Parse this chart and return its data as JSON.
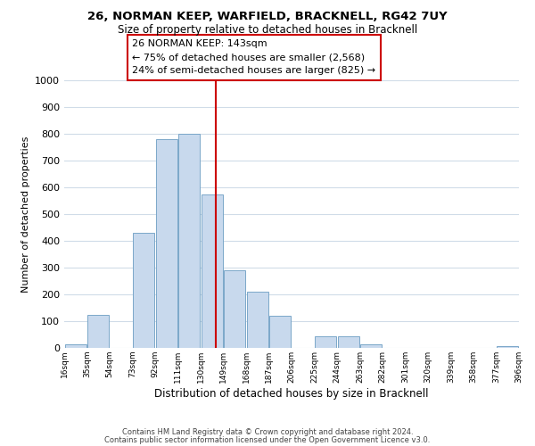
{
  "title1": "26, NORMAN KEEP, WARFIELD, BRACKNELL, RG42 7UY",
  "title2": "Size of property relative to detached houses in Bracknell",
  "xlabel": "Distribution of detached houses by size in Bracknell",
  "ylabel": "Number of detached properties",
  "bar_left_edges": [
    16,
    35,
    54,
    73,
    92,
    111,
    130,
    149,
    168,
    187,
    206,
    225,
    244,
    263,
    282,
    301,
    320,
    339,
    358,
    377
  ],
  "bar_heights": [
    15,
    125,
    0,
    430,
    780,
    800,
    575,
    290,
    210,
    120,
    0,
    42,
    42,
    13,
    0,
    0,
    0,
    0,
    0,
    8
  ],
  "bin_width": 19,
  "bar_color": "#c8d9ed",
  "bar_edge_color": "#7ba7c9",
  "vline_x": 143,
  "vline_color": "#cc0000",
  "xlim": [
    16,
    396
  ],
  "ylim": [
    0,
    1000
  ],
  "yticks": [
    0,
    100,
    200,
    300,
    400,
    500,
    600,
    700,
    800,
    900,
    1000
  ],
  "xtick_labels": [
    "16sqm",
    "35sqm",
    "54sqm",
    "73sqm",
    "92sqm",
    "111sqm",
    "130sqm",
    "149sqm",
    "168sqm",
    "187sqm",
    "206sqm",
    "225sqm",
    "244sqm",
    "263sqm",
    "282sqm",
    "301sqm",
    "320sqm",
    "339sqm",
    "358sqm",
    "377sqm",
    "396sqm"
  ],
  "xtick_positions": [
    16,
    35,
    54,
    73,
    92,
    111,
    130,
    149,
    168,
    187,
    206,
    225,
    244,
    263,
    282,
    301,
    320,
    339,
    358,
    377,
    396
  ],
  "annotation_title": "26 NORMAN KEEP: 143sqm",
  "annotation_line1": "← 75% of detached houses are smaller (2,568)",
  "annotation_line2": "24% of semi-detached houses are larger (825) →",
  "footer1": "Contains HM Land Registry data © Crown copyright and database right 2024.",
  "footer2": "Contains public sector information licensed under the Open Government Licence v3.0.",
  "bg_color": "#ffffff",
  "grid_color": "#d0dce8"
}
